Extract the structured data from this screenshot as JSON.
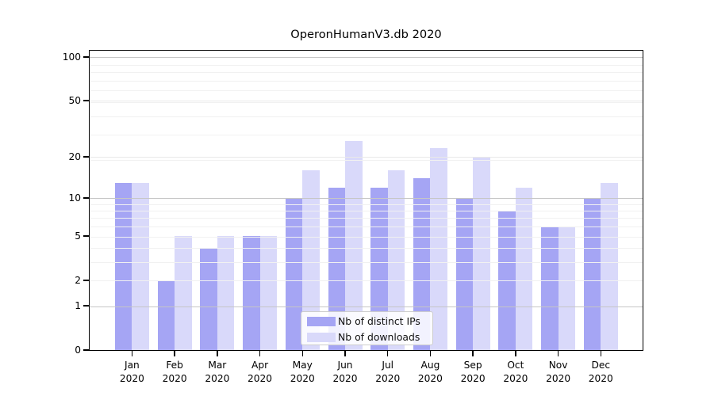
{
  "title": "OperonHumanV3.db 2020",
  "chart_data": {
    "type": "bar",
    "title": "OperonHumanV3.db 2020",
    "categories": [
      {
        "month": "Jan",
        "year": "2020"
      },
      {
        "month": "Feb",
        "year": "2020"
      },
      {
        "month": "Mar",
        "year": "2020"
      },
      {
        "month": "Apr",
        "year": "2020"
      },
      {
        "month": "May",
        "year": "2020"
      },
      {
        "month": "Jun",
        "year": "2020"
      },
      {
        "month": "Jul",
        "year": "2020"
      },
      {
        "month": "Aug",
        "year": "2020"
      },
      {
        "month": "Sep",
        "year": "2020"
      },
      {
        "month": "Oct",
        "year": "2020"
      },
      {
        "month": "Nov",
        "year": "2020"
      },
      {
        "month": "Dec",
        "year": "2020"
      }
    ],
    "series": [
      {
        "name": "Nb of distinct IPs",
        "key": "distinct-ips",
        "color": "#a5a5f4",
        "values": [
          13,
          2,
          4,
          5,
          10,
          12,
          12,
          14,
          10,
          8,
          6,
          10
        ]
      },
      {
        "name": "Nb of downloads",
        "key": "downloads",
        "color": "#d9d9fa",
        "values": [
          13,
          5,
          5,
          5,
          16,
          26,
          16,
          23,
          20,
          12,
          6,
          13
        ]
      }
    ],
    "xlabel": "",
    "ylabel": "",
    "yscale": "log1p",
    "ylim": [
      0,
      111
    ],
    "yticks": [
      {
        "value": 0,
        "label": "0"
      },
      {
        "value": 1,
        "label": "1"
      },
      {
        "value": 2,
        "label": "2"
      },
      {
        "value": 5,
        "label": "5"
      },
      {
        "value": 10,
        "label": "10"
      },
      {
        "value": 20,
        "label": "20"
      },
      {
        "value": 50,
        "label": "50"
      },
      {
        "value": 100,
        "label": "100"
      }
    ],
    "decade_gridline_values": [
      1,
      10,
      100
    ],
    "minor_gridlines_1p": [
      3,
      4,
      5,
      6,
      7,
      8,
      9,
      10,
      20,
      30,
      40,
      50,
      60,
      70,
      80,
      90
    ],
    "grid": true,
    "legend_position": "lower center"
  },
  "colors": {
    "decade_gridline": "#c6c6c6",
    "major_gridline": "#e9e9e9",
    "minor_gridline": "#f1f1f1",
    "spine": "#000000",
    "background": "#ffffff",
    "text": "#000000"
  }
}
